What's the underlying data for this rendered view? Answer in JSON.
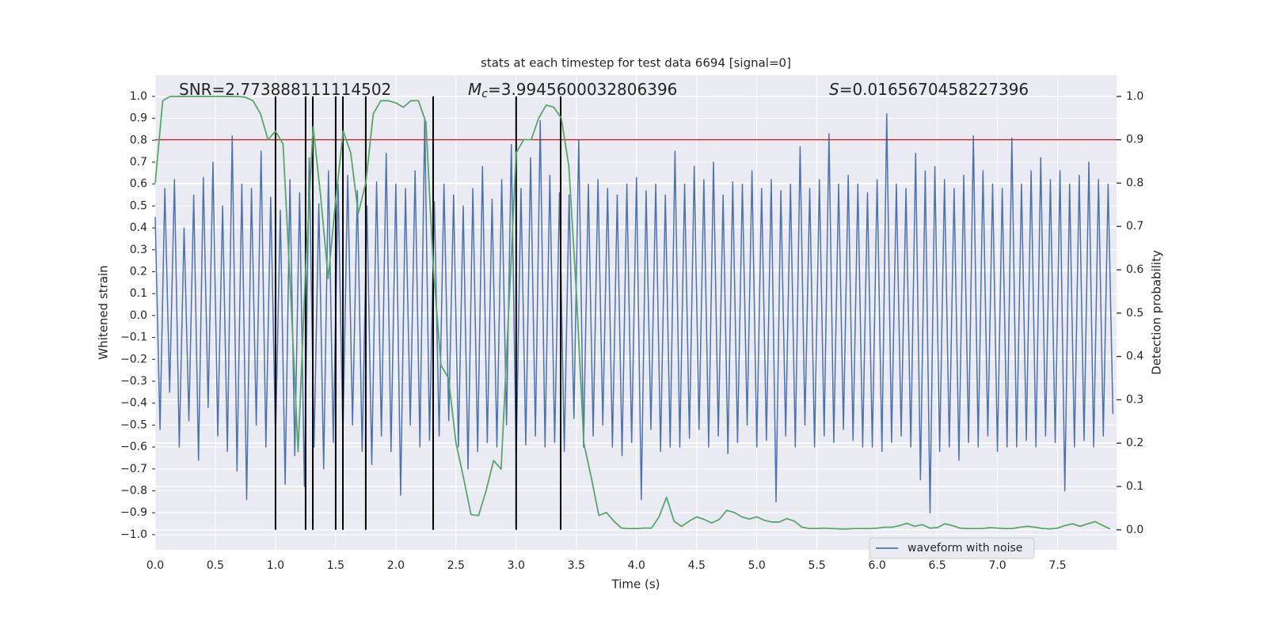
{
  "chart_data": {
    "type": "line",
    "title": "stats at each timestep for test data 6694 [signal=0]",
    "xlabel": "Time (s)",
    "ylabel": "Whitened strain",
    "y2label": "Detection probability",
    "annotations": [
      {
        "text": "SNR=2.773888111114502"
      },
      {
        "symbol": "M",
        "subscript": "c",
        "text": "=3.9945600032806396"
      },
      {
        "symbol": "S",
        "text": "=0.0165670458227396"
      }
    ],
    "xlim": [
      0,
      7.99
    ],
    "ylim": [
      -1.069,
      1.097
    ],
    "y2lim": [
      -0.046,
      1.049
    ],
    "xticks": [
      {
        "value": 0,
        "label": "0.0"
      },
      {
        "value": 0.5,
        "label": "0.5"
      },
      {
        "value": 1,
        "label": "1.0"
      },
      {
        "value": 1.5,
        "label": "1.5"
      },
      {
        "value": 2,
        "label": "2.0"
      },
      {
        "value": 2.5,
        "label": "2.5"
      },
      {
        "value": 3,
        "label": "3.0"
      },
      {
        "value": 3.5,
        "label": "3.5"
      },
      {
        "value": 4,
        "label": "4.0"
      },
      {
        "value": 4.5,
        "label": "4.5"
      },
      {
        "value": 5,
        "label": "5.0"
      },
      {
        "value": 5.5,
        "label": "5.5"
      },
      {
        "value": 6,
        "label": "6.0"
      },
      {
        "value": 6.5,
        "label": "6.5"
      },
      {
        "value": 7,
        "label": "7.0"
      },
      {
        "value": 7.5,
        "label": "7.5"
      }
    ],
    "yticks": [
      {
        "value": -1,
        "label": "−1.0"
      },
      {
        "value": -0.9,
        "label": "−0.9"
      },
      {
        "value": -0.8,
        "label": "−0.8"
      },
      {
        "value": -0.7,
        "label": "−0.7"
      },
      {
        "value": -0.6,
        "label": "−0.6"
      },
      {
        "value": -0.5,
        "label": "−0.5"
      },
      {
        "value": -0.4,
        "label": "−0.4"
      },
      {
        "value": -0.3,
        "label": "−0.3"
      },
      {
        "value": -0.2,
        "label": "−0.2"
      },
      {
        "value": -0.1,
        "label": "−0.1"
      },
      {
        "value": 0,
        "label": "0.0"
      },
      {
        "value": 0.1,
        "label": "0.1"
      },
      {
        "value": 0.2,
        "label": "0.2"
      },
      {
        "value": 0.3,
        "label": "0.3"
      },
      {
        "value": 0.4,
        "label": "0.4"
      },
      {
        "value": 0.5,
        "label": "0.5"
      },
      {
        "value": 0.6,
        "label": "0.6"
      },
      {
        "value": 0.7,
        "label": "0.7"
      },
      {
        "value": 0.8,
        "label": "0.8"
      },
      {
        "value": 0.9,
        "label": "0.9"
      },
      {
        "value": 1,
        "label": "1.0"
      }
    ],
    "y2ticks": [
      {
        "value": 0,
        "label": "0.0"
      },
      {
        "value": 0.1,
        "label": "0.1"
      },
      {
        "value": 0.2,
        "label": "0.2"
      },
      {
        "value": 0.3,
        "label": "0.3"
      },
      {
        "value": 0.4,
        "label": "0.4"
      },
      {
        "value": 0.5,
        "label": "0.5"
      },
      {
        "value": 0.6,
        "label": "0.6"
      },
      {
        "value": 0.7,
        "label": "0.7"
      },
      {
        "value": 0.8,
        "label": "0.8"
      },
      {
        "value": 0.9,
        "label": "0.9"
      },
      {
        "value": 1,
        "label": "1.0"
      }
    ],
    "grid": true,
    "legend": "lower right",
    "y2_threshold": 0.9,
    "threshold_color": "#b8312f",
    "detections": [
      1.0,
      1.25,
      1.31,
      1.5,
      1.56,
      1.75,
      2.31,
      3.0,
      3.37
    ],
    "detection_color": "#000000",
    "series": [
      {
        "name": "waveform with noise",
        "color": "#4c72b0",
        "axis": "y",
        "x": [
          0,
          0.04,
          0.08,
          0.12,
          0.16,
          0.2,
          0.24,
          0.28,
          0.32,
          0.36,
          0.4,
          0.44,
          0.48,
          0.52,
          0.56,
          0.6,
          0.64,
          0.68,
          0.72,
          0.76,
          0.8,
          0.84,
          0.88,
          0.92,
          0.96,
          1,
          1.04,
          1.08,
          1.12,
          1.16,
          1.2,
          1.24,
          1.28,
          1.32,
          1.36,
          1.4,
          1.44,
          1.48,
          1.52,
          1.56,
          1.6,
          1.64,
          1.68,
          1.72,
          1.76,
          1.8,
          1.84,
          1.88,
          1.92,
          1.96,
          2,
          2.04,
          2.08,
          2.12,
          2.16,
          2.2,
          2.24,
          2.28,
          2.32,
          2.36,
          2.4,
          2.44,
          2.48,
          2.52,
          2.56,
          2.6,
          2.64,
          2.68,
          2.72,
          2.76,
          2.8,
          2.84,
          2.88,
          2.92,
          2.96,
          3,
          3.04,
          3.08,
          3.12,
          3.16,
          3.2,
          3.24,
          3.28,
          3.32,
          3.36,
          3.4,
          3.44,
          3.48,
          3.52,
          3.56,
          3.6,
          3.64,
          3.68,
          3.72,
          3.76,
          3.8,
          3.84,
          3.88,
          3.92,
          3.96,
          4,
          4.04,
          4.08,
          4.12,
          4.16,
          4.2,
          4.24,
          4.28,
          4.32,
          4.36,
          4.4,
          4.44,
          4.48,
          4.52,
          4.56,
          4.6,
          4.64,
          4.68,
          4.72,
          4.76,
          4.8,
          4.84,
          4.88,
          4.92,
          4.96,
          5,
          5.04,
          5.08,
          5.12,
          5.16,
          5.2,
          5.24,
          5.28,
          5.32,
          5.36,
          5.4,
          5.44,
          5.48,
          5.52,
          5.56,
          5.6,
          5.64,
          5.68,
          5.72,
          5.76,
          5.8,
          5.84,
          5.88,
          5.92,
          5.96,
          6,
          6.04,
          6.08,
          6.12,
          6.16,
          6.2,
          6.24,
          6.28,
          6.32,
          6.36,
          6.4,
          6.44,
          6.48,
          6.52,
          6.56,
          6.6,
          6.64,
          6.68,
          6.72,
          6.76,
          6.8,
          6.84,
          6.88,
          6.92,
          6.96,
          7,
          7.04,
          7.08,
          7.12,
          7.16,
          7.2,
          7.24,
          7.28,
          7.32,
          7.36,
          7.4,
          7.44,
          7.48,
          7.52,
          7.56,
          7.6,
          7.64,
          7.68,
          7.72,
          7.76,
          7.8,
          7.84,
          7.88,
          7.92,
          7.96
        ],
        "values": [
          0.45,
          -0.52,
          0.58,
          -0.35,
          0.62,
          -0.6,
          0.4,
          -0.48,
          0.55,
          -0.66,
          0.63,
          -0.42,
          0.7,
          -0.55,
          0.5,
          -0.62,
          0.82,
          -0.71,
          0.6,
          -0.84,
          0.58,
          -0.5,
          0.75,
          -0.6,
          0.54,
          -0.56,
          0.48,
          -0.77,
          0.62,
          -0.64,
          0.56,
          -0.78,
          0.72,
          -0.6,
          0.51,
          -0.7,
          0.66,
          -0.58,
          0.6,
          -0.55,
          0.64,
          -0.5,
          0.57,
          -0.62,
          0.5,
          -0.68,
          0.61,
          -0.55,
          0.74,
          -0.62,
          0.6,
          -0.82,
          0.58,
          -0.5,
          0.66,
          -0.6,
          0.9,
          -0.57,
          0.52,
          -0.55,
          0.6,
          -0.48,
          0.55,
          -0.6,
          0.5,
          -0.7,
          0.58,
          -0.62,
          0.68,
          -0.58,
          0.53,
          -0.6,
          0.62,
          -0.5,
          0.78,
          -0.66,
          0.58,
          -0.59,
          0.72,
          -0.55,
          0.89,
          -0.6,
          0.64,
          -0.58,
          0.56,
          -0.62,
          0.55,
          -0.47,
          0.8,
          -0.6,
          0.6,
          -0.55,
          0.62,
          -0.5,
          0.58,
          -0.6,
          0.55,
          -0.64,
          0.6,
          -0.58,
          0.63,
          -0.84,
          0.57,
          -0.52,
          0.6,
          -0.62,
          0.55,
          -0.6,
          0.75,
          -0.6,
          0.6,
          -0.56,
          0.68,
          -0.52,
          0.62,
          -0.6,
          0.7,
          -0.55,
          0.55,
          -0.63,
          0.61,
          -0.58,
          0.6,
          -0.5,
          0.66,
          -0.6,
          0.58,
          -0.57,
          0.62,
          -0.85,
          0.57,
          -0.55,
          0.6,
          -0.6,
          0.77,
          -0.5,
          0.58,
          -0.6,
          0.62,
          -0.55,
          0.83,
          -0.58,
          0.6,
          -0.52,
          0.64,
          -0.57,
          0.6,
          -0.6,
          0.56,
          -0.6,
          0.62,
          -0.62,
          0.92,
          -0.58,
          0.6,
          -0.55,
          0.58,
          -0.6,
          0.74,
          -0.75,
          0.66,
          -0.9,
          0.68,
          -0.62,
          0.62,
          -0.6,
          0.58,
          -0.66,
          0.64,
          -0.58,
          0.82,
          -0.6,
          0.66,
          -0.55,
          0.6,
          -0.62,
          0.58,
          -0.6,
          0.81,
          -0.6,
          0.6,
          -0.57,
          0.66,
          -0.6,
          0.72,
          -0.55,
          0.62,
          -0.58,
          0.66,
          -0.8,
          0.6,
          -0.6,
          0.64,
          -0.57,
          0.7,
          -0.6,
          0.62,
          -0.55,
          0.6,
          -0.45
        ]
      },
      {
        "color": "#55a868",
        "axis": "y2",
        "x": [
          0,
          0.0625,
          0.125,
          0.1875,
          0.25,
          0.3125,
          0.375,
          0.4375,
          0.5,
          0.5625,
          0.625,
          0.6875,
          0.75,
          0.8125,
          0.875,
          0.9375,
          1,
          1.0625,
          1.125,
          1.1875,
          1.25,
          1.3125,
          1.375,
          1.4375,
          1.5,
          1.5625,
          1.625,
          1.6875,
          1.75,
          1.8125,
          1.875,
          1.9375,
          2,
          2.0625,
          2.125,
          2.1875,
          2.25,
          2.3125,
          2.375,
          2.4375,
          2.5,
          2.5625,
          2.625,
          2.6875,
          2.75,
          2.8125,
          2.875,
          2.9375,
          3,
          3.0625,
          3.125,
          3.1875,
          3.25,
          3.3125,
          3.375,
          3.4375,
          3.5,
          3.5625,
          3.625,
          3.6875,
          3.75,
          3.8125,
          3.875,
          3.9375,
          4,
          4.0625,
          4.125,
          4.1875,
          4.25,
          4.3125,
          4.375,
          4.4375,
          4.5,
          4.5625,
          4.625,
          4.6875,
          4.75,
          4.8125,
          4.875,
          4.9375,
          5,
          5.0625,
          5.125,
          5.1875,
          5.25,
          5.3125,
          5.375,
          5.4375,
          5.5,
          5.5625,
          5.625,
          5.6875,
          5.75,
          5.8125,
          5.875,
          5.9375,
          6,
          6.0625,
          6.125,
          6.1875,
          6.25,
          6.3125,
          6.375,
          6.4375,
          6.5,
          6.5625,
          6.625,
          6.6875,
          6.75,
          6.8125,
          6.875,
          6.9375,
          7,
          7.0625,
          7.125,
          7.1875,
          7.25,
          7.3125,
          7.375,
          7.4375,
          7.5,
          7.5625,
          7.625,
          7.6875,
          7.75,
          7.8125,
          7.875,
          7.9375
        ],
        "values": [
          0.8,
          0.99,
          1,
          1,
          1,
          1,
          1,
          1,
          1,
          1,
          1,
          1,
          0.998,
          0.99,
          0.96,
          0.9,
          0.92,
          0.89,
          0.55,
          0.18,
          0.6,
          0.93,
          0.77,
          0.58,
          0.76,
          0.92,
          0.87,
          0.73,
          0.8,
          0.96,
          0.99,
          0.99,
          0.985,
          0.975,
          0.99,
          0.99,
          0.94,
          0.6,
          0.38,
          0.35,
          0.2,
          0.12,
          0.035,
          0.033,
          0.09,
          0.16,
          0.14,
          0.5,
          0.87,
          0.9,
          0.9,
          0.95,
          0.98,
          0.975,
          0.95,
          0.84,
          0.55,
          0.2,
          0.12,
          0.033,
          0.04,
          0.02,
          0.004,
          0.003,
          0.003,
          0.004,
          0.004,
          0.03,
          0.075,
          0.02,
          0.008,
          0.02,
          0.03,
          0.024,
          0.016,
          0.024,
          0.045,
          0.04,
          0.03,
          0.025,
          0.03,
          0.022,
          0.018,
          0.018,
          0.026,
          0.02,
          0.006,
          0.003,
          0.003,
          0.004,
          0.003,
          0.002,
          0.002,
          0.003,
          0.003,
          0.003,
          0.004,
          0.006,
          0.006,
          0.01,
          0.015,
          0.008,
          0.012,
          0.004,
          0.005,
          0.014,
          0.01,
          0.004,
          0.003,
          0.003,
          0.003,
          0.005,
          0.004,
          0.003,
          0.003,
          0.006,
          0.008,
          0.006,
          0.003,
          0.002,
          0.004,
          0.01,
          0.014,
          0.008,
          0.014,
          0.019,
          0.01,
          0.002
        ]
      }
    ]
  }
}
